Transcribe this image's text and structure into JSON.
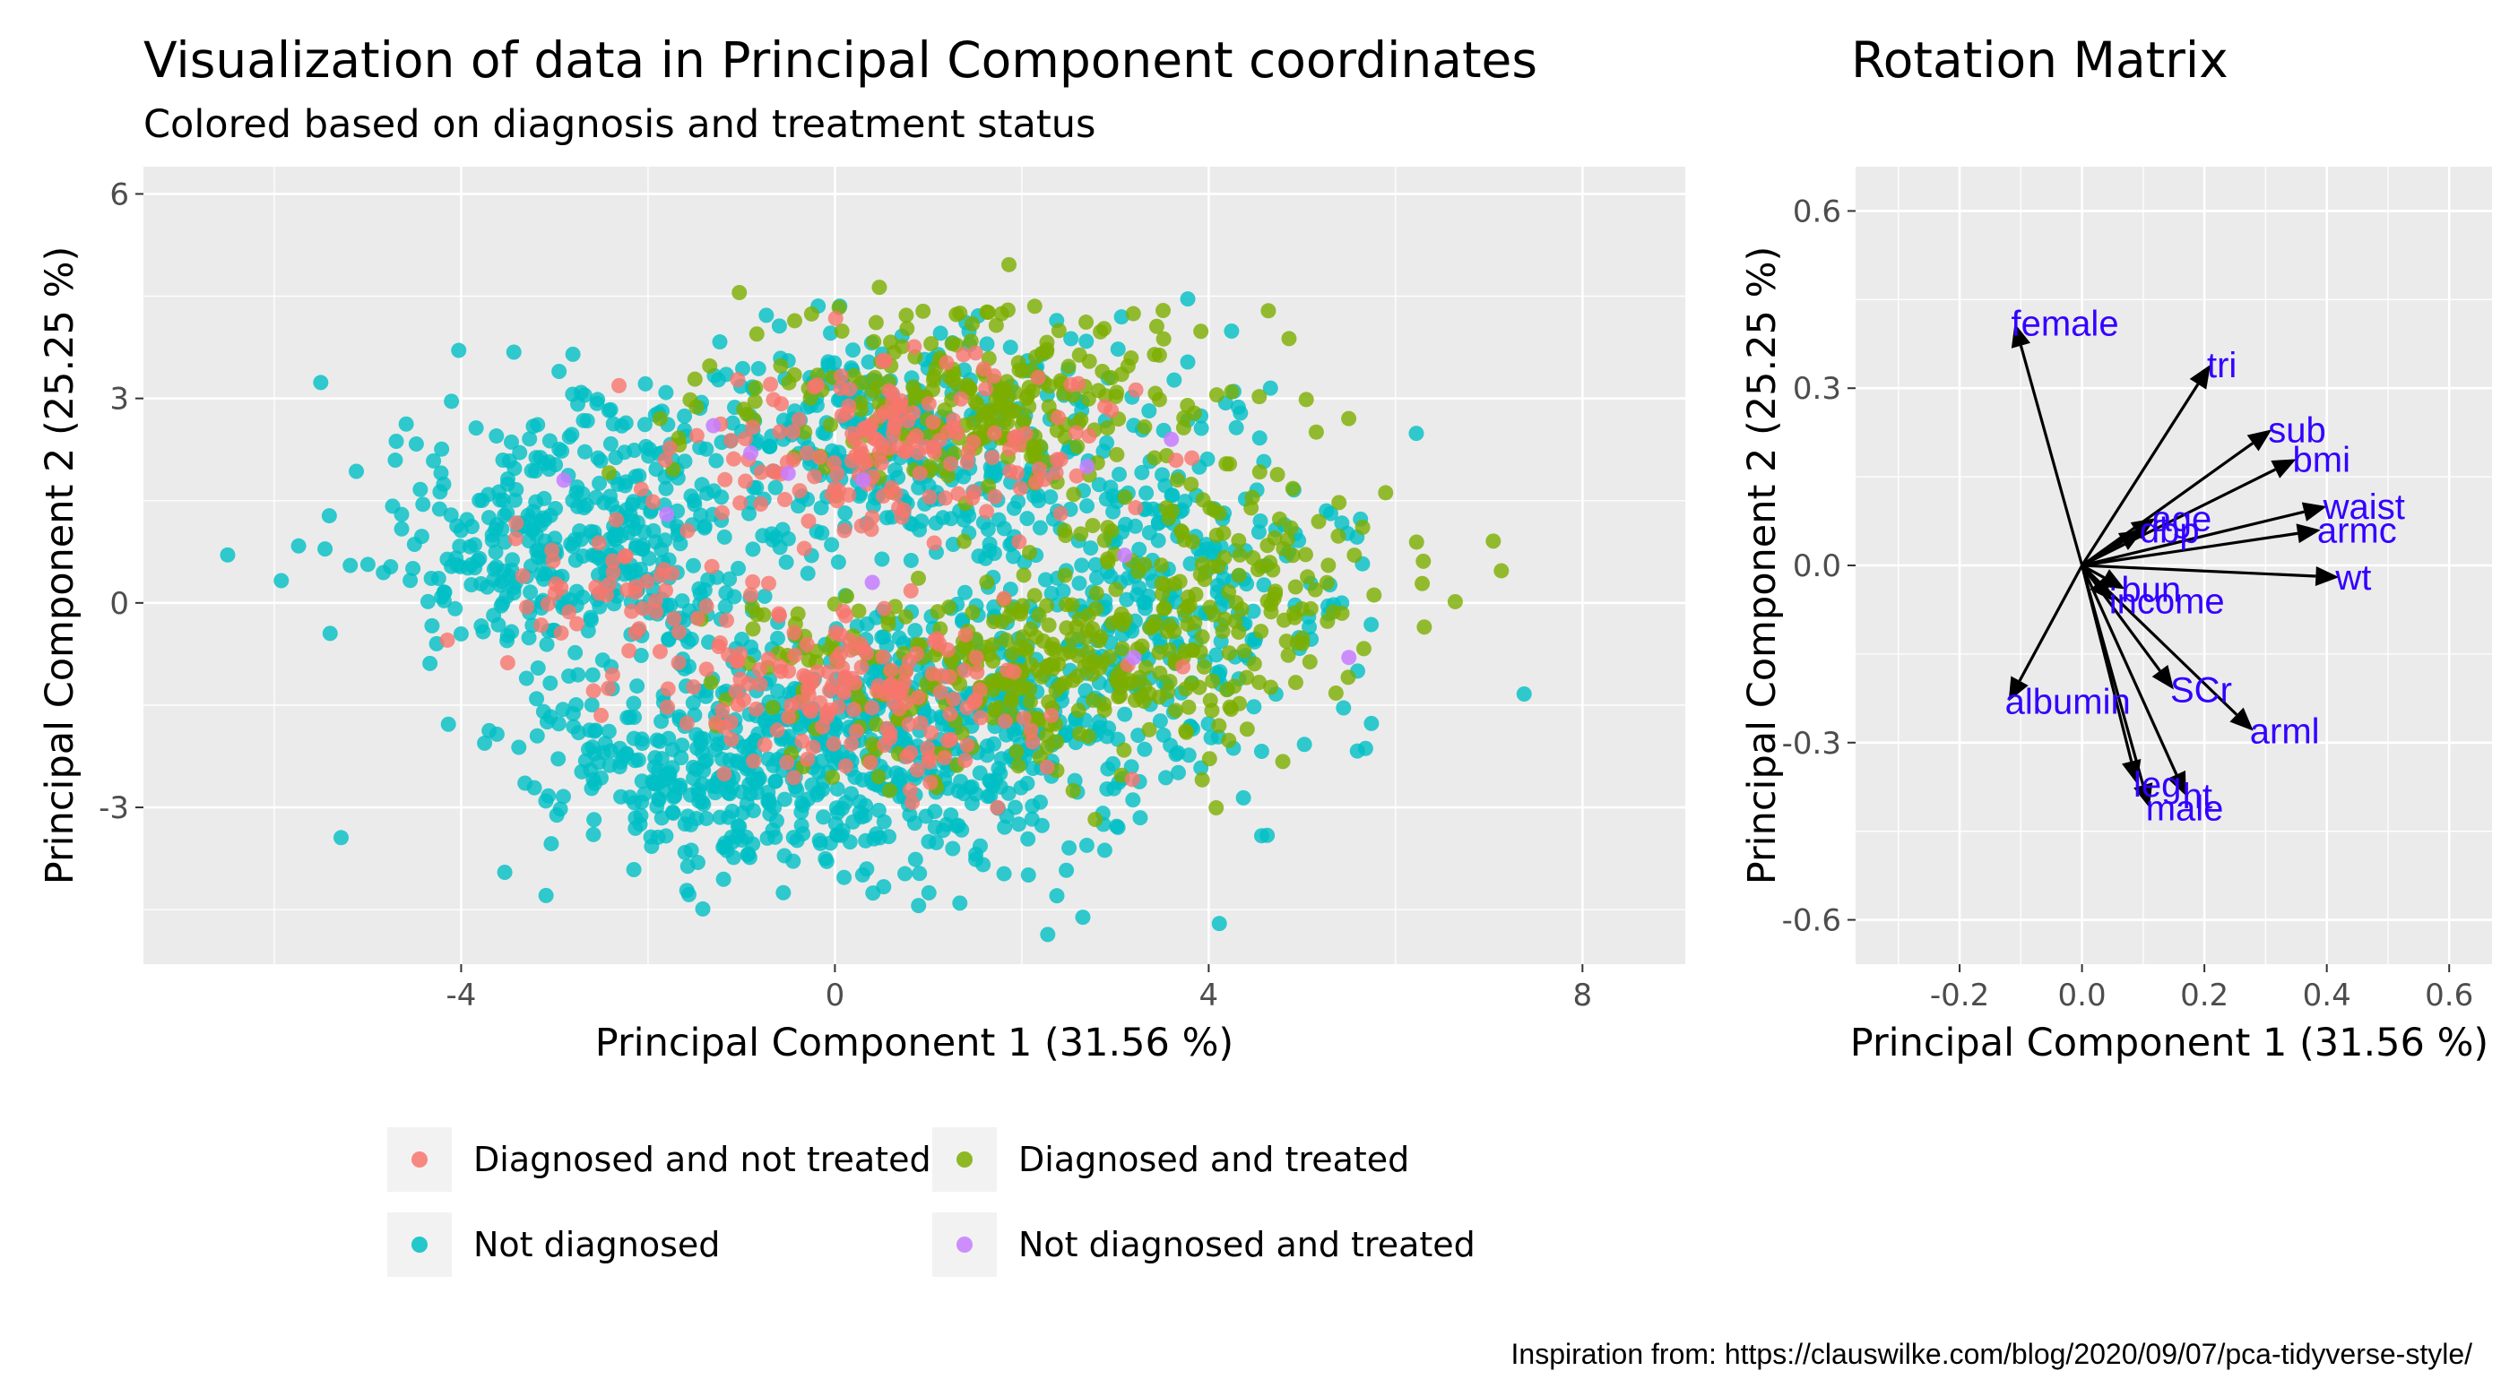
{
  "left_title": "Visualization of data in Principal Component coordinates",
  "left_subtitle": "Colored based on diagnosis and treatment status",
  "right_title": "Rotation Matrix",
  "caption": "Inspiration from: https://clauswilke.com/blog/2020/09/07/pca-tidyverse-style/",
  "colors": {
    "panel_bg": "#ebebeb",
    "grid": "#ffffff",
    "diagnosed_not_treated": "#f8766d",
    "diagnosed_treated": "#7cae00",
    "not_diagnosed": "#00bfc4",
    "not_diagnosed_treated": "#c77cff",
    "variable_label": "#3300ff",
    "arrow": "#000000"
  },
  "legend": [
    {
      "label": "Diagnosed and not treated",
      "color": "#f8766d"
    },
    {
      "label": "Diagnosed and treated",
      "color": "#7cae00"
    },
    {
      "label": "Not diagnosed",
      "color": "#00bfc4"
    },
    {
      "label": "Not diagnosed and treated",
      "color": "#c77cff"
    }
  ],
  "chart_data": [
    {
      "type": "scatter",
      "title": "Visualization of data in Principal Component coordinates",
      "subtitle": "Colored based on diagnosis and treatment status",
      "xlabel": "Principal Component 1 (31.56 %)",
      "ylabel": "Principal Component 2 (25.25 %)",
      "xlim": [
        -7.4,
        9.1
      ],
      "ylim": [
        -5.3,
        6.4
      ],
      "xticks": [
        -4,
        0,
        4,
        8
      ],
      "yticks": [
        -3,
        0,
        3,
        6
      ],
      "grid": true,
      "legend_position": "bottom",
      "approximate_point_count": 5000,
      "series": [
        {
          "name": "Not diagnosed",
          "color": "#00bfc4",
          "clusters": [
            {
              "center": [
                -2.6,
                0.8
              ],
              "spread": [
                1.5,
                1.4
              ]
            },
            {
              "center": [
                -1.0,
                -2.5
              ],
              "spread": [
                1.7,
                1.0
              ]
            },
            {
              "center": [
                1.5,
                -1.8
              ],
              "spread": [
                1.9,
                1.2
              ]
            },
            {
              "center": [
                0.8,
                2.4
              ],
              "spread": [
                1.9,
                1.1
              ]
            },
            {
              "center": [
                3.5,
                0.4
              ],
              "spread": [
                1.5,
                1.5
              ]
            }
          ]
        },
        {
          "name": "Diagnosed and treated",
          "color": "#7cae00",
          "clusters": [
            {
              "center": [
                1.6,
                3.0
              ],
              "spread": [
                1.8,
                0.9
              ]
            },
            {
              "center": [
                2.0,
                -1.0
              ],
              "spread": [
                1.8,
                1.0
              ]
            },
            {
              "center": [
                4.0,
                0.2
              ],
              "spread": [
                1.5,
                1.4
              ]
            }
          ]
        },
        {
          "name": "Diagnosed and not treated",
          "color": "#f8766d",
          "clusters": [
            {
              "center": [
                0.8,
                2.2
              ],
              "spread": [
                1.5,
                0.9
              ]
            },
            {
              "center": [
                0.3,
                -1.3
              ],
              "spread": [
                1.5,
                0.8
              ]
            },
            {
              "center": [
                -2.3,
                0.2
              ],
              "spread": [
                1.0,
                0.8
              ]
            }
          ]
        },
        {
          "name": "Not diagnosed and treated",
          "color": "#c77cff",
          "points": [
            [
              -2.9,
              1.8
            ],
            [
              -1.8,
              1.3
            ],
            [
              -1.3,
              2.6
            ],
            [
              -0.5,
              1.9
            ],
            [
              0.3,
              1.8
            ],
            [
              0.4,
              0.3
            ],
            [
              2.7,
              2.0
            ],
            [
              3.1,
              0.7
            ],
            [
              3.6,
              2.4
            ],
            [
              5.5,
              -0.8
            ],
            [
              3.2,
              -0.8
            ],
            [
              -0.9,
              2.2
            ]
          ]
        }
      ]
    },
    {
      "type": "arrows",
      "title": "Rotation Matrix",
      "xlabel": "Principal Component 1 (31.56 %)",
      "ylabel": "Principal Component 2 (25.25 %)",
      "xlim": [
        -0.37,
        0.67
      ],
      "ylim": [
        -0.675,
        0.675
      ],
      "xticks": [
        -0.2,
        0.0,
        0.2,
        0.4,
        0.6
      ],
      "yticks": [
        -0.6,
        -0.3,
        0.0,
        0.3,
        0.6
      ],
      "grid": true,
      "vectors": [
        {
          "name": "female",
          "x": -0.11,
          "y": 0.41
        },
        {
          "name": "tri",
          "x": 0.21,
          "y": 0.34
        },
        {
          "name": "sub",
          "x": 0.31,
          "y": 0.23
        },
        {
          "name": "bmi",
          "x": 0.35,
          "y": 0.18
        },
        {
          "name": "waist",
          "x": 0.4,
          "y": 0.1
        },
        {
          "name": "armc",
          "x": 0.39,
          "y": 0.06
        },
        {
          "name": "age",
          "x": 0.12,
          "y": 0.08
        },
        {
          "name": "dbp",
          "x": 0.1,
          "y": 0.06
        },
        {
          "name": "wt",
          "x": 0.42,
          "y": -0.02
        },
        {
          "name": "bun",
          "x": 0.07,
          "y": -0.04
        },
        {
          "name": "income",
          "x": 0.05,
          "y": -0.06
        },
        {
          "name": "albumin",
          "x": -0.12,
          "y": -0.23
        },
        {
          "name": "SCr",
          "x": 0.15,
          "y": -0.21
        },
        {
          "name": "arml",
          "x": 0.28,
          "y": -0.28
        },
        {
          "name": "leg",
          "x": 0.09,
          "y": -0.37
        },
        {
          "name": "ht",
          "x": 0.17,
          "y": -0.39
        },
        {
          "name": "male",
          "x": 0.11,
          "y": -0.41
        }
      ]
    }
  ]
}
